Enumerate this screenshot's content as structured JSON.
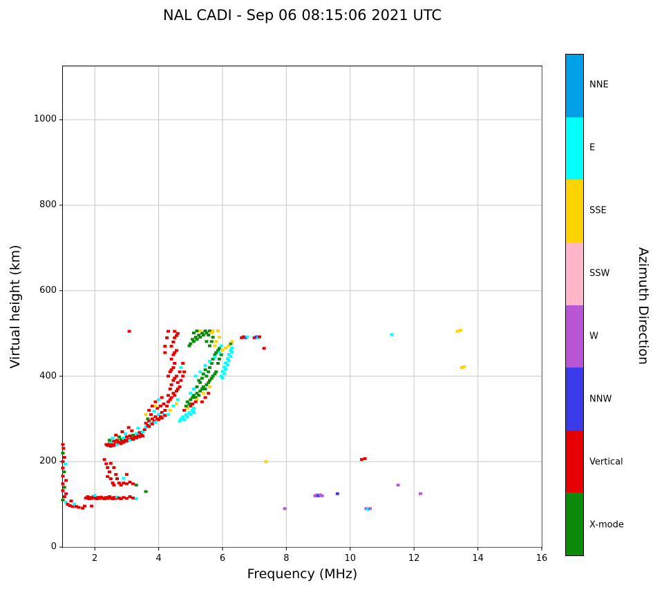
{
  "title": "NAL CADI - Sep 06 08:15:06 2021 UTC",
  "chart_data": {
    "type": "scatter",
    "title": "NAL CADI - Sep 06 08:15:06 2021 UTC",
    "xlabel": "Frequency (MHz)",
    "ylabel": "Virtual height (km)",
    "colorbar_label": "Azimuth Direction",
    "xlim": [
      1,
      16
    ],
    "ylim": [
      0,
      1125
    ],
    "xticks": [
      2,
      4,
      6,
      8,
      10,
      12,
      14,
      16
    ],
    "yticks": [
      0,
      200,
      400,
      600,
      800,
      1000
    ],
    "grid": true,
    "grid_color": "#c9c9c9",
    "legend_position": "right-colorbar",
    "categories": [
      {
        "name": "NNE",
        "color": "#00a0e8"
      },
      {
        "name": "E",
        "color": "#00ffff"
      },
      {
        "name": "SSE",
        "color": "#ffd200"
      },
      {
        "name": "SSW",
        "color": "#ffb6c8"
      },
      {
        "name": "W",
        "color": "#ba55d3"
      },
      {
        "name": "NNW",
        "color": "#3a3ae8"
      },
      {
        "name": "Vertical",
        "color": "#e60000"
      },
      {
        "name": "X-mode",
        "color": "#0b8a0b"
      }
    ],
    "points": [
      [
        1.0,
        240,
        6
      ],
      [
        1.02,
        231,
        6
      ],
      [
        1.0,
        220,
        7
      ],
      [
        1.05,
        210,
        6
      ],
      [
        1.0,
        200,
        6
      ],
      [
        1.08,
        194,
        1
      ],
      [
        1.0,
        185,
        6
      ],
      [
        1.04,
        176,
        7
      ],
      [
        1.0,
        166,
        6
      ],
      [
        1.1,
        156,
        6
      ],
      [
        1.0,
        148,
        6
      ],
      [
        1.05,
        140,
        7
      ],
      [
        1.0,
        132,
        6
      ],
      [
        1.1,
        125,
        6
      ],
      [
        1.05,
        118,
        6
      ],
      [
        1.0,
        110,
        7
      ],
      [
        1.1,
        105,
        1
      ],
      [
        1.15,
        100,
        6
      ],
      [
        1.22,
        97,
        6
      ],
      [
        1.3,
        95,
        6
      ],
      [
        1.26,
        108,
        6
      ],
      [
        1.36,
        100,
        1
      ],
      [
        1.42,
        95,
        6
      ],
      [
        1.5,
        93,
        6
      ],
      [
        1.62,
        91,
        6
      ],
      [
        1.68,
        96,
        6
      ],
      [
        1.72,
        115,
        6
      ],
      [
        1.78,
        118,
        6
      ],
      [
        1.82,
        113,
        6
      ],
      [
        1.86,
        116,
        6
      ],
      [
        1.9,
        114,
        6
      ],
      [
        1.9,
        96,
        6
      ],
      [
        1.96,
        118,
        6
      ],
      [
        2.0,
        115,
        6
      ],
      [
        2.0,
        121,
        1
      ],
      [
        2.06,
        113,
        6
      ],
      [
        2.1,
        116,
        6
      ],
      [
        2.16,
        114,
        6
      ],
      [
        2.2,
        117,
        6
      ],
      [
        2.26,
        115,
        6
      ],
      [
        2.3,
        113,
        6
      ],
      [
        2.36,
        116,
        6
      ],
      [
        2.4,
        114,
        6
      ],
      [
        2.46,
        118,
        6
      ],
      [
        2.5,
        115,
        6
      ],
      [
        2.56,
        113,
        6
      ],
      [
        2.6,
        116,
        6
      ],
      [
        2.66,
        114,
        6
      ],
      [
        2.7,
        117,
        1
      ],
      [
        2.76,
        115,
        6
      ],
      [
        2.82,
        113,
        6
      ],
      [
        2.9,
        116,
        6
      ],
      [
        3.0,
        114,
        6
      ],
      [
        3.1,
        118,
        6
      ],
      [
        3.2,
        115,
        6
      ],
      [
        3.3,
        113,
        1
      ],
      [
        2.3,
        205,
        6
      ],
      [
        2.36,
        195,
        6
      ],
      [
        2.4,
        186,
        6
      ],
      [
        2.46,
        176,
        6
      ],
      [
        2.4,
        165,
        6
      ],
      [
        2.5,
        160,
        6
      ],
      [
        2.56,
        150,
        6
      ],
      [
        2.6,
        145,
        6
      ],
      [
        2.5,
        196,
        6
      ],
      [
        2.6,
        186,
        6
      ],
      [
        2.66,
        170,
        6
      ],
      [
        2.7,
        160,
        6
      ],
      [
        2.76,
        150,
        6
      ],
      [
        2.82,
        145,
        6
      ],
      [
        2.9,
        150,
        6
      ],
      [
        3.0,
        148,
        6
      ],
      [
        3.1,
        152,
        6
      ],
      [
        3.2,
        148,
        6
      ],
      [
        2.9,
        161,
        1
      ],
      [
        3.0,
        170,
        6
      ],
      [
        3.3,
        145,
        7
      ],
      [
        3.6,
        130,
        7
      ],
      [
        2.36,
        240,
        6
      ],
      [
        2.4,
        238,
        6
      ],
      [
        2.46,
        242,
        6
      ],
      [
        2.5,
        236,
        6
      ],
      [
        2.5,
        246,
        1
      ],
      [
        2.56,
        240,
        6
      ],
      [
        2.6,
        238,
        6
      ],
      [
        2.6,
        248,
        6
      ],
      [
        2.66,
        243,
        6
      ],
      [
        2.7,
        240,
        1
      ],
      [
        2.7,
        250,
        6
      ],
      [
        2.76,
        245,
        6
      ],
      [
        2.82,
        242,
        6
      ],
      [
        2.82,
        252,
        7
      ],
      [
        2.86,
        248,
        6
      ],
      [
        2.9,
        245,
        6
      ],
      [
        2.9,
        255,
        1
      ],
      [
        2.96,
        250,
        6
      ],
      [
        3.0,
        248,
        6
      ],
      [
        3.0,
        258,
        6
      ],
      [
        3.06,
        252,
        6
      ],
      [
        3.1,
        250,
        1
      ],
      [
        3.1,
        260,
        6
      ],
      [
        3.16,
        255,
        6
      ],
      [
        3.2,
        252,
        6
      ],
      [
        3.2,
        262,
        7
      ],
      [
        3.26,
        258,
        6
      ],
      [
        3.3,
        255,
        6
      ],
      [
        3.3,
        265,
        1
      ],
      [
        3.36,
        260,
        6
      ],
      [
        3.4,
        258,
        6
      ],
      [
        3.4,
        268,
        6
      ],
      [
        3.46,
        263,
        6
      ],
      [
        3.5,
        260,
        6
      ],
      [
        3.5,
        270,
        1
      ],
      [
        2.46,
        250,
        7
      ],
      [
        2.56,
        255,
        1
      ],
      [
        2.76,
        258,
        7
      ],
      [
        2.96,
        265,
        1
      ],
      [
        3.16,
        272,
        6
      ],
      [
        3.36,
        278,
        1
      ],
      [
        3.06,
        280,
        6
      ],
      [
        2.86,
        270,
        6
      ],
      [
        2.66,
        262,
        6
      ],
      [
        3.08,
        505,
        6
      ],
      [
        3.56,
        275,
        6
      ],
      [
        3.6,
        281,
        1
      ],
      [
        3.6,
        290,
        6
      ],
      [
        3.66,
        285,
        6
      ],
      [
        3.7,
        282,
        6
      ],
      [
        3.7,
        295,
        6
      ],
      [
        3.76,
        290,
        1
      ],
      [
        3.8,
        288,
        6
      ],
      [
        3.8,
        300,
        6
      ],
      [
        3.86,
        295,
        6
      ],
      [
        3.9,
        292,
        1
      ],
      [
        3.9,
        305,
        6
      ],
      [
        3.96,
        300,
        6
      ],
      [
        4.0,
        298,
        6
      ],
      [
        4.0,
        310,
        1
      ],
      [
        4.06,
        305,
        6
      ],
      [
        4.1,
        302,
        6
      ],
      [
        4.1,
        315,
        6
      ],
      [
        4.16,
        310,
        1
      ],
      [
        4.2,
        308,
        6
      ],
      [
        4.2,
        320,
        6
      ],
      [
        3.66,
        300,
        7
      ],
      [
        3.76,
        310,
        6
      ],
      [
        3.86,
        318,
        1
      ],
      [
        3.96,
        325,
        6
      ],
      [
        4.06,
        330,
        6
      ],
      [
        4.16,
        335,
        6
      ],
      [
        3.7,
        320,
        6
      ],
      [
        3.8,
        330,
        6
      ],
      [
        3.9,
        340,
        6
      ],
      [
        4.0,
        345,
        1
      ],
      [
        4.1,
        350,
        6
      ],
      [
        3.6,
        310,
        2
      ],
      [
        3.9,
        330,
        2
      ],
      [
        4.26,
        330,
        6
      ],
      [
        4.3,
        340,
        6
      ],
      [
        4.3,
        355,
        6
      ],
      [
        4.36,
        345,
        6
      ],
      [
        4.36,
        370,
        6
      ],
      [
        4.4,
        350,
        6
      ],
      [
        4.4,
        380,
        6
      ],
      [
        4.46,
        360,
        6
      ],
      [
        4.46,
        390,
        6
      ],
      [
        4.5,
        355,
        6
      ],
      [
        4.5,
        395,
        6
      ],
      [
        4.56,
        365,
        6
      ],
      [
        4.56,
        400,
        6
      ],
      [
        4.6,
        370,
        6
      ],
      [
        4.6,
        385,
        6
      ],
      [
        4.66,
        375,
        6
      ],
      [
        4.3,
        400,
        6
      ],
      [
        4.36,
        410,
        6
      ],
      [
        4.4,
        415,
        6
      ],
      [
        4.46,
        420,
        6
      ],
      [
        4.5,
        430,
        6
      ],
      [
        4.4,
        440,
        6
      ],
      [
        4.46,
        450,
        6
      ],
      [
        4.5,
        455,
        6
      ],
      [
        4.56,
        460,
        6
      ],
      [
        4.4,
        470,
        6
      ],
      [
        4.46,
        480,
        6
      ],
      [
        4.5,
        490,
        6
      ],
      [
        4.56,
        495,
        6
      ],
      [
        4.6,
        500,
        6
      ],
      [
        4.5,
        505,
        6
      ],
      [
        4.3,
        310,
        1
      ],
      [
        4.46,
        330,
        1
      ],
      [
        4.6,
        345,
        1
      ],
      [
        4.36,
        320,
        2
      ],
      [
        4.56,
        335,
        2
      ],
      [
        4.66,
        410,
        6
      ],
      [
        4.7,
        390,
        6
      ],
      [
        4.7,
        420,
        1
      ],
      [
        4.76,
        400,
        6
      ],
      [
        4.76,
        430,
        6
      ],
      [
        4.8,
        410,
        6
      ],
      [
        4.2,
        470,
        6
      ],
      [
        4.26,
        490,
        6
      ],
      [
        4.3,
        505,
        6
      ],
      [
        4.2,
        455,
        6
      ],
      [
        4.66,
        295,
        1
      ],
      [
        4.7,
        300,
        1
      ],
      [
        4.76,
        305,
        1
      ],
      [
        4.8,
        298,
        1
      ],
      [
        4.86,
        310,
        1
      ],
      [
        4.9,
        305,
        1
      ],
      [
        4.96,
        315,
        1
      ],
      [
        5.0,
        310,
        1
      ],
      [
        5.06,
        320,
        1
      ],
      [
        5.1,
        315,
        1
      ],
      [
        4.8,
        320,
        6
      ],
      [
        4.9,
        325,
        2
      ],
      [
        5.0,
        330,
        6
      ],
      [
        5.1,
        325,
        1
      ],
      [
        4.86,
        330,
        7
      ],
      [
        4.9,
        340,
        7
      ],
      [
        4.96,
        335,
        7
      ],
      [
        5.0,
        345,
        7
      ],
      [
        5.06,
        350,
        7
      ],
      [
        5.1,
        355,
        7
      ],
      [
        5.16,
        350,
        7
      ],
      [
        5.2,
        360,
        7
      ],
      [
        5.26,
        355,
        7
      ],
      [
        5.3,
        365,
        7
      ],
      [
        5.36,
        370,
        7
      ],
      [
        5.4,
        375,
        7
      ],
      [
        5.46,
        370,
        7
      ],
      [
        5.5,
        380,
        7
      ],
      [
        5.56,
        385,
        7
      ],
      [
        5.6,
        390,
        7
      ],
      [
        5.66,
        395,
        7
      ],
      [
        5.7,
        400,
        7
      ],
      [
        5.76,
        405,
        7
      ],
      [
        5.8,
        410,
        7
      ],
      [
        5.5,
        400,
        7
      ],
      [
        5.56,
        410,
        7
      ],
      [
        5.6,
        420,
        7
      ],
      [
        5.66,
        430,
        7
      ],
      [
        5.7,
        440,
        7
      ],
      [
        5.76,
        450,
        7
      ],
      [
        5.8,
        455,
        7
      ],
      [
        5.86,
        460,
        7
      ],
      [
        5.9,
        465,
        7
      ],
      [
        5.86,
        430,
        7
      ],
      [
        5.9,
        440,
        7
      ],
      [
        5.96,
        450,
        7
      ],
      [
        5.3,
        385,
        7
      ],
      [
        5.36,
        395,
        7
      ],
      [
        5.4,
        405,
        7
      ],
      [
        5.46,
        415,
        7
      ],
      [
        5.2,
        375,
        7
      ],
      [
        5.26,
        390,
        7
      ],
      [
        5.16,
        400,
        1
      ],
      [
        5.3,
        410,
        1
      ],
      [
        5.46,
        425,
        1
      ],
      [
        5.6,
        435,
        1
      ],
      [
        5.76,
        445,
        1
      ],
      [
        5.9,
        455,
        1
      ],
      [
        5.0,
        360,
        1
      ],
      [
        5.1,
        370,
        1
      ],
      [
        5.2,
        345,
        2
      ],
      [
        5.4,
        360,
        2
      ],
      [
        5.6,
        375,
        2
      ],
      [
        5.36,
        340,
        6
      ],
      [
        5.46,
        350,
        6
      ],
      [
        5.56,
        360,
        6
      ],
      [
        5.06,
        335,
        6
      ],
      [
        5.16,
        340,
        6
      ],
      [
        5.0,
        476,
        7
      ],
      [
        5.06,
        486,
        7
      ],
      [
        5.1,
        481,
        7
      ],
      [
        5.16,
        491,
        7
      ],
      [
        5.2,
        486,
        7
      ],
      [
        5.26,
        496,
        7
      ],
      [
        5.3,
        491,
        7
      ],
      [
        5.36,
        501,
        7
      ],
      [
        5.4,
        496,
        7
      ],
      [
        5.46,
        506,
        7
      ],
      [
        5.5,
        501,
        7
      ],
      [
        5.56,
        496,
        7
      ],
      [
        5.6,
        506,
        7
      ],
      [
        5.1,
        501,
        7
      ],
      [
        5.2,
        506,
        7
      ],
      [
        4.96,
        471,
        7
      ],
      [
        5.3,
        506,
        2
      ],
      [
        5.5,
        481,
        7
      ],
      [
        5.6,
        471,
        7
      ],
      [
        5.66,
        481,
        7
      ],
      [
        5.7,
        491,
        7
      ],
      [
        5.66,
        501,
        2
      ],
      [
        5.7,
        506,
        2
      ],
      [
        5.76,
        471,
        2
      ],
      [
        5.8,
        481,
        2
      ],
      [
        5.86,
        506,
        2
      ],
      [
        5.9,
        491,
        2
      ],
      [
        5.96,
        400,
        1
      ],
      [
        6.0,
        396,
        1
      ],
      [
        6.0,
        411,
        1
      ],
      [
        6.06,
        406,
        1
      ],
      [
        6.06,
        421,
        1
      ],
      [
        6.1,
        416,
        1
      ],
      [
        6.1,
        431,
        1
      ],
      [
        6.16,
        426,
        1
      ],
      [
        6.16,
        441,
        1
      ],
      [
        6.2,
        436,
        1
      ],
      [
        6.2,
        451,
        1
      ],
      [
        6.26,
        446,
        1
      ],
      [
        6.26,
        461,
        1
      ],
      [
        6.3,
        456,
        1
      ],
      [
        6.3,
        466,
        1
      ],
      [
        5.96,
        471,
        1
      ],
      [
        6.0,
        461,
        2
      ],
      [
        6.1,
        466,
        2
      ],
      [
        6.2,
        471,
        2
      ],
      [
        6.26,
        476,
        7
      ],
      [
        6.3,
        481,
        2
      ],
      [
        6.6,
        490,
        6
      ],
      [
        6.66,
        492,
        6
      ],
      [
        6.72,
        490,
        5
      ],
      [
        6.78,
        492,
        1
      ],
      [
        7.0,
        490,
        6
      ],
      [
        7.06,
        492,
        5
      ],
      [
        7.12,
        490,
        1
      ],
      [
        7.16,
        492,
        6
      ],
      [
        7.3,
        465,
        6
      ],
      [
        7.36,
        200,
        2
      ],
      [
        7.95,
        90,
        4
      ],
      [
        8.9,
        120,
        4
      ],
      [
        8.96,
        122,
        4
      ],
      [
        9.0,
        120,
        5
      ],
      [
        9.06,
        122,
        4
      ],
      [
        9.12,
        120,
        4
      ],
      [
        9.6,
        125,
        5
      ],
      [
        10.36,
        205,
        6
      ],
      [
        10.46,
        207,
        6
      ],
      [
        10.5,
        90,
        4
      ],
      [
        10.56,
        88,
        1
      ],
      [
        10.62,
        90,
        4
      ],
      [
        11.3,
        497,
        1
      ],
      [
        11.5,
        145,
        4
      ],
      [
        12.2,
        125,
        4
      ],
      [
        13.36,
        505,
        2
      ],
      [
        13.46,
        507,
        2
      ],
      [
        13.5,
        420,
        2
      ],
      [
        13.56,
        422,
        2
      ]
    ]
  }
}
